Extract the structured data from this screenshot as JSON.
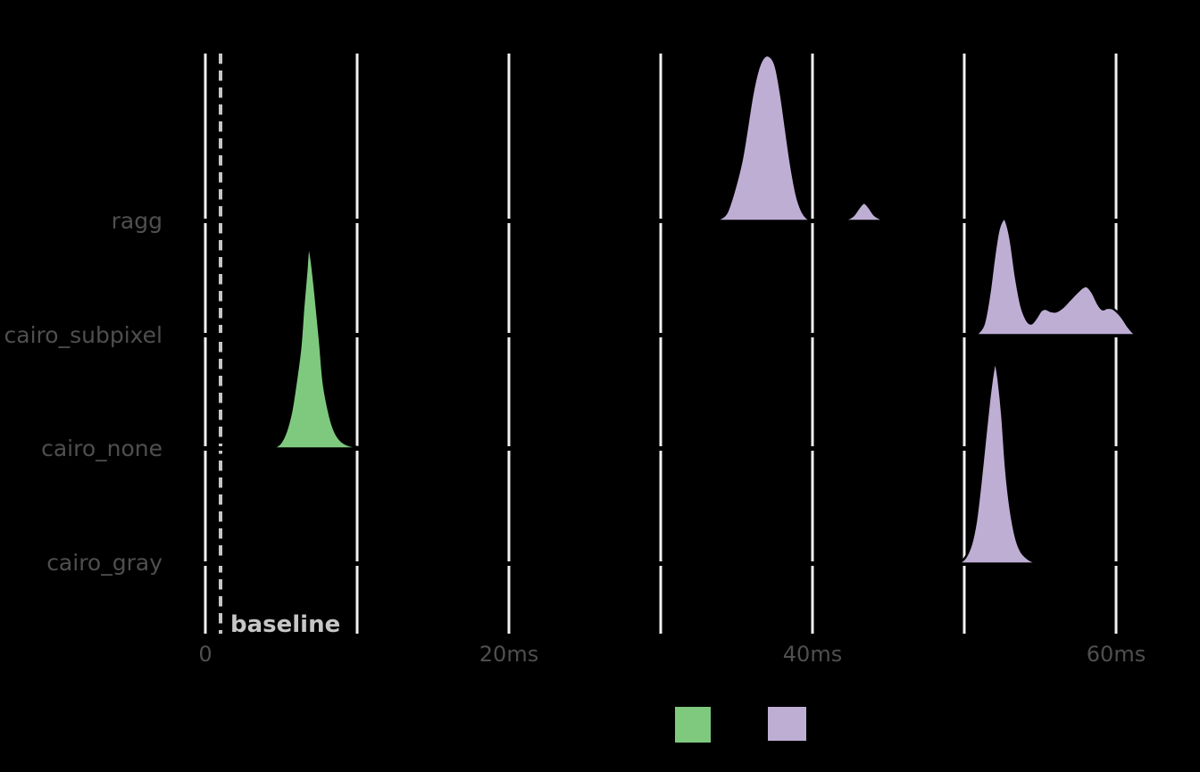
{
  "figure": {
    "background_color": "#000000",
    "grid_color": "#f2f2f2",
    "axis_text_color": "#4f4f4f",
    "baseline_marker_color": "#c6c6c6",
    "density_outline_color": "#000000",
    "green_color": "#7FC97F",
    "purple_color": "#BEAED4"
  },
  "chart_data": {
    "type": "area",
    "subtype": "ridgeline-density",
    "title": "",
    "xlabel": "",
    "ylabel": "",
    "x_unit": "ms",
    "xlim_ms": [
      0,
      61.5
    ],
    "grid": "vertical-only",
    "x_gridlines_ms": [
      0,
      10,
      20,
      30,
      40,
      50,
      60
    ],
    "x_ticks": [
      {
        "value": 0,
        "label": "0"
      },
      {
        "value": 20,
        "label": "20ms"
      },
      {
        "value": 40,
        "label": "40ms"
      },
      {
        "value": 60,
        "label": "60ms"
      }
    ],
    "categories": [
      "ragg",
      "cairo_subpixel",
      "cairo_none",
      "cairo_gray"
    ],
    "baseline_marker": {
      "x_ms": 1.0,
      "label": "baseline",
      "style": "dashed-vertical-line"
    },
    "density_height_units": "row_heights",
    "series": [
      {
        "category": "ragg",
        "fill": "#BEAED4",
        "modes_ms": [
          37.1,
          43.4
        ],
        "segments": [
          [
            [
              33.4,
              0
            ],
            [
              33.9,
              0.02
            ],
            [
              34.35,
              0.075
            ],
            [
              34.8,
              0.25
            ],
            [
              35.3,
              0.51
            ],
            [
              35.65,
              0.78
            ],
            [
              36.0,
              1.08
            ],
            [
              36.35,
              1.3
            ],
            [
              36.7,
              1.42
            ],
            [
              37.1,
              1.45
            ],
            [
              37.55,
              1.37
            ],
            [
              37.9,
              1.13
            ],
            [
              38.25,
              0.8
            ],
            [
              38.6,
              0.48
            ],
            [
              38.95,
              0.23
            ],
            [
              39.3,
              0.09
            ],
            [
              39.65,
              0.025
            ],
            [
              40.1,
              0
            ]
          ],
          [
            [
              41.9,
              0
            ],
            [
              42.35,
              0.02
            ],
            [
              42.7,
              0.05
            ],
            [
              43.05,
              0.115
            ],
            [
              43.4,
              0.16
            ],
            [
              43.75,
              0.115
            ],
            [
              44.1,
              0.05
            ],
            [
              44.55,
              0.016
            ],
            [
              44.95,
              0
            ]
          ]
        ]
      },
      {
        "category": "cairo_subpixel",
        "fill": "#BEAED4",
        "modes_ms": [
          52.6,
          58.1
        ],
        "segments": [
          [
            [
              50.6,
              0
            ],
            [
              50.95,
              0.027
            ],
            [
              51.3,
              0.106
            ],
            [
              51.65,
              0.356
            ],
            [
              51.95,
              0.67
            ],
            [
              52.25,
              0.92
            ],
            [
              52.55,
              1.015
            ],
            [
              52.75,
              1.0
            ],
            [
              53.05,
              0.84
            ],
            [
              53.4,
              0.51
            ],
            [
              53.75,
              0.26
            ],
            [
              54.1,
              0.137
            ],
            [
              54.4,
              0.102
            ],
            [
              54.7,
              0.145
            ],
            [
              55.05,
              0.215
            ],
            [
              55.35,
              0.231
            ],
            [
              55.7,
              0.211
            ],
            [
              56.05,
              0.208
            ],
            [
              56.5,
              0.247
            ],
            [
              56.95,
              0.31
            ],
            [
              57.4,
              0.372
            ],
            [
              57.8,
              0.42
            ],
            [
              58.1,
              0.427
            ],
            [
              58.45,
              0.372
            ],
            [
              58.8,
              0.278
            ],
            [
              59.1,
              0.227
            ],
            [
              59.4,
              0.239
            ],
            [
              59.75,
              0.235
            ],
            [
              60.1,
              0.2
            ],
            [
              60.45,
              0.145
            ],
            [
              60.8,
              0.074
            ],
            [
              61.1,
              0.027
            ],
            [
              61.35,
              0
            ]
          ]
        ]
      },
      {
        "category": "cairo_none",
        "fill": "#7FC97F",
        "modes_ms": [
          6.8
        ],
        "segments": [
          [
            [
              4.1,
              0
            ],
            [
              4.6,
              0.016
            ],
            [
              4.95,
              0.05
            ],
            [
              5.3,
              0.145
            ],
            [
              5.65,
              0.32
            ],
            [
              5.95,
              0.57
            ],
            [
              6.25,
              0.88
            ],
            [
              6.45,
              1.23
            ],
            [
              6.65,
              1.55
            ],
            [
              6.8,
              1.77
            ],
            [
              7.0,
              1.65
            ],
            [
              7.25,
              1.35
            ],
            [
              7.55,
              0.94
            ],
            [
              7.8,
              0.57
            ],
            [
              8.2,
              0.29
            ],
            [
              8.55,
              0.145
            ],
            [
              8.95,
              0.067
            ],
            [
              9.4,
              0.031
            ],
            [
              10.0,
              0.013
            ],
            [
              10.6,
              0.005
            ],
            [
              11.25,
              0
            ]
          ]
        ]
      },
      {
        "category": "cairo_gray",
        "fill": "#BEAED4",
        "modes_ms": [
          52.0
        ],
        "segments": [
          [
            [
              49.3,
              0
            ],
            [
              49.75,
              0.016
            ],
            [
              50.1,
              0.06
            ],
            [
              50.45,
              0.17
            ],
            [
              50.75,
              0.36
            ],
            [
              51.05,
              0.68
            ],
            [
              51.35,
              1.07
            ],
            [
              51.65,
              1.44
            ],
            [
              51.9,
              1.69
            ],
            [
              52.05,
              1.76
            ],
            [
              52.25,
              1.62
            ],
            [
              52.5,
              1.3
            ],
            [
              52.75,
              0.83
            ],
            [
              53.05,
              0.48
            ],
            [
              53.4,
              0.23
            ],
            [
              53.75,
              0.106
            ],
            [
              54.2,
              0.043
            ],
            [
              54.65,
              0.013
            ],
            [
              55.2,
              0
            ]
          ]
        ]
      }
    ],
    "legend": {
      "position": "bottom-center",
      "swatches": [
        {
          "color": "#7FC97F"
        },
        {
          "color": "#BEAED4"
        }
      ]
    }
  }
}
